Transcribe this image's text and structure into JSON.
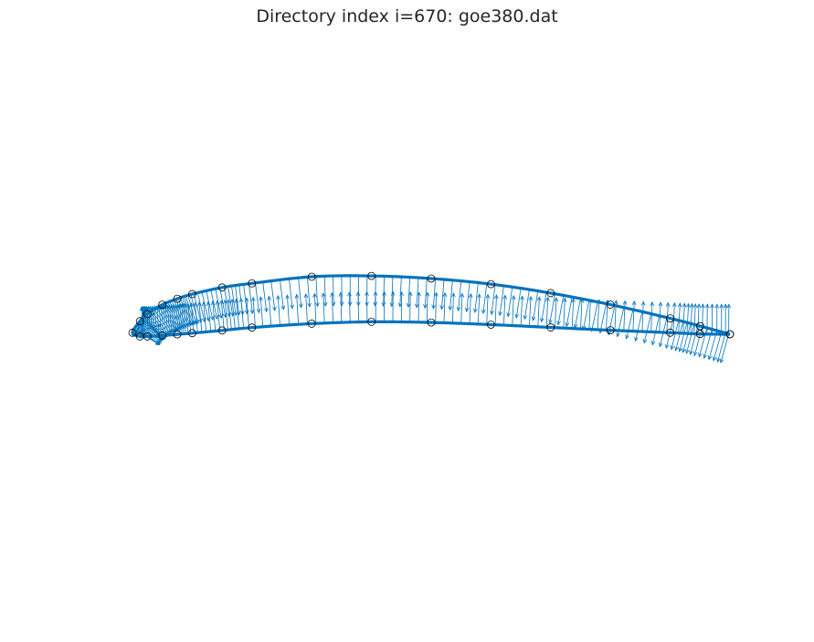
{
  "title": "Directory index i=670: goe380.dat",
  "colors": {
    "curve": "#0072BD",
    "arrow": "#0072BD",
    "marker": "#000000",
    "background": "#ffffff"
  },
  "chart_data": {
    "type": "line",
    "title": "Directory index i=670: goe380.dat",
    "xlabel": "",
    "ylabel": "",
    "axes_visible": false,
    "xlim": [
      -0.05,
      1.05
    ],
    "ylim": [
      -0.65,
      0.65
    ],
    "normal_arrow_length": 0.05,
    "series": [
      {
        "role": "airfoil-outline",
        "marker": "circle",
        "points": [
          [
            1.0,
            0.0
          ],
          [
            0.95,
            0.0137
          ],
          [
            0.9,
            0.0266
          ],
          [
            0.8,
            0.0496
          ],
          [
            0.7,
            0.0689
          ],
          [
            0.6,
            0.0839
          ],
          [
            0.5,
            0.0933
          ],
          [
            0.4,
            0.0977
          ],
          [
            0.3,
            0.0963
          ],
          [
            0.2,
            0.0852
          ],
          [
            0.15,
            0.0783
          ],
          [
            0.1,
            0.0672
          ],
          [
            0.075,
            0.0594
          ],
          [
            0.05,
            0.0495
          ],
          [
            0.025,
            0.0337
          ],
          [
            0.0125,
            0.0219
          ],
          [
            0.0,
            0.0026
          ],
          [
            0.0125,
            -0.0037
          ],
          [
            0.025,
            -0.0037
          ],
          [
            0.05,
            -0.0022
          ],
          [
            0.075,
            -0.0002
          ],
          [
            0.1,
            0.0018
          ],
          [
            0.15,
            0.0064
          ],
          [
            0.2,
            0.0112
          ],
          [
            0.3,
            0.0177
          ],
          [
            0.4,
            0.0208
          ],
          [
            0.5,
            0.0197
          ],
          [
            0.6,
            0.0161
          ],
          [
            0.7,
            0.0114
          ],
          [
            0.8,
            0.0067
          ],
          [
            0.9,
            0.0026
          ],
          [
            0.95,
            0.0004
          ],
          [
            1.0,
            0.0
          ]
        ]
      }
    ]
  }
}
